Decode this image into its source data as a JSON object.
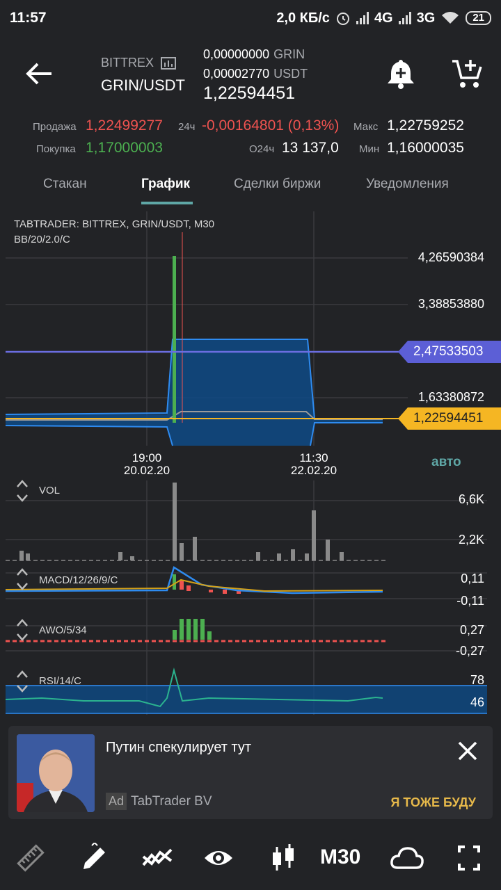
{
  "status_bar": {
    "time": "11:57",
    "speed": "2,0 КБ/с",
    "net1": "4G",
    "net2": "3G",
    "battery": "21"
  },
  "header": {
    "exchange": "BITTREX",
    "pair": "GRIN/USDT",
    "balance_base_value": "0,00000000",
    "balance_base_unit": "GRIN",
    "balance_quote_value": "0,00002770",
    "balance_quote_unit": "USDT",
    "last_price": "1,22594451"
  },
  "stats": {
    "sell_label": "Продажа",
    "sell_value": "1,22499277",
    "buy_label": "Покупка",
    "buy_value": "1,17000003",
    "change_label": "24ч",
    "change_value": "-0,00164801 (0,13%)",
    "volume_label": "O24ч",
    "volume_value": "13 137,0",
    "high_label": "Макс",
    "high_value": "1,22759252",
    "low_label": "Мин",
    "low_value": "1,16000035"
  },
  "tabs": [
    {
      "label": "Стакан"
    },
    {
      "label": "График"
    },
    {
      "label": "Сделки биржи"
    },
    {
      "label": "Уведомления"
    }
  ],
  "chart": {
    "title_line1": "TABTRADER: BITTREX, GRIN/USDT, M30",
    "title_line2": "BB/20/2.0/C",
    "auto_label": "авто",
    "price_levels": [
      "4,26590384",
      "3,38853880",
      "1,63380872"
    ],
    "alert_price": "2,47533503",
    "current_price": "1,22594451",
    "dates": [
      {
        "time": "19:00",
        "date": "20.02.20"
      },
      {
        "time": "11:30",
        "date": "22.02.20"
      }
    ],
    "indicators": {
      "vol": {
        "label": "VOL",
        "max": "6,6K",
        "mid": "2,2K"
      },
      "macd": {
        "label": "MACD/12/26/9/C",
        "top": "0,11",
        "bottom": "-0,11"
      },
      "awo": {
        "label": "AWO/5/34",
        "top": "0,27",
        "bottom": "-0,27"
      },
      "rsi": {
        "label": "RSI/14/C",
        "top": "78",
        "bottom": "46"
      }
    },
    "colors": {
      "up": "#4caf50",
      "down": "#ef5350",
      "band": "#1565c0",
      "alert": "#5c5fd6",
      "current": "#f5b623"
    }
  },
  "ad": {
    "title": "Путин спекулирует тут",
    "badge": "Ad",
    "company": "TabTrader BV",
    "cta": "Я ТОЖЕ БУДУ"
  },
  "toolbar": {
    "timeframe": "M30",
    "icons": [
      "ruler-icon",
      "pencil-icon",
      "indicators-icon",
      "eye-icon",
      "candles-icon",
      "cloud-icon",
      "fullscreen-icon"
    ]
  }
}
